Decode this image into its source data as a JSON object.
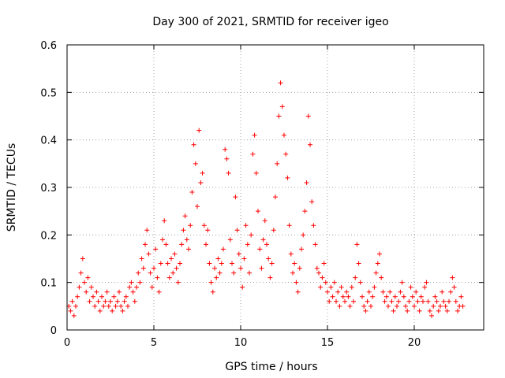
{
  "chart_data": {
    "type": "scatter",
    "title": "Day 300 of 2021, SRMTID for receiver igeo",
    "xlabel": "GPS time / hours",
    "ylabel": "SRMTID / TECUs",
    "xlim": [
      0,
      24
    ],
    "ylim": [
      0,
      0.6
    ],
    "xticks": [
      0,
      5,
      10,
      15,
      20
    ],
    "yticks": [
      0,
      0.1,
      0.2,
      0.3,
      0.4,
      0.5,
      0.6
    ],
    "xtick_labels": [
      "0",
      "5",
      "10",
      "15",
      "20"
    ],
    "ytick_labels": [
      "0",
      "0.1",
      "0.2",
      "0.3",
      "0.4",
      "0.5",
      "0.6"
    ],
    "grid": true,
    "marker": "plus",
    "color": "#ff0000",
    "series": [
      {
        "name": "SRMTID",
        "points": [
          [
            0.1,
            0.05
          ],
          [
            0.2,
            0.04
          ],
          [
            0.3,
            0.06
          ],
          [
            0.4,
            0.03
          ],
          [
            0.5,
            0.05
          ],
          [
            0.6,
            0.07
          ],
          [
            0.7,
            0.09
          ],
          [
            0.8,
            0.12
          ],
          [
            0.9,
            0.15
          ],
          [
            1.0,
            0.1
          ],
          [
            1.1,
            0.08
          ],
          [
            1.2,
            0.11
          ],
          [
            1.3,
            0.06
          ],
          [
            1.4,
            0.09
          ],
          [
            1.5,
            0.07
          ],
          [
            1.6,
            0.05
          ],
          [
            1.7,
            0.08
          ],
          [
            1.8,
            0.06
          ],
          [
            1.9,
            0.04
          ],
          [
            2.0,
            0.07
          ],
          [
            2.1,
            0.05
          ],
          [
            2.2,
            0.06
          ],
          [
            2.3,
            0.08
          ],
          [
            2.4,
            0.05
          ],
          [
            2.5,
            0.06
          ],
          [
            2.6,
            0.04
          ],
          [
            2.7,
            0.07
          ],
          [
            2.8,
            0.05
          ],
          [
            2.9,
            0.06
          ],
          [
            3.0,
            0.08
          ],
          [
            3.1,
            0.05
          ],
          [
            3.2,
            0.04
          ],
          [
            3.3,
            0.06
          ],
          [
            3.4,
            0.07
          ],
          [
            3.5,
            0.05
          ],
          [
            3.6,
            0.09
          ],
          [
            3.7,
            0.1
          ],
          [
            3.8,
            0.08
          ],
          [
            3.9,
            0.06
          ],
          [
            4.0,
            0.09
          ],
          [
            4.1,
            0.12
          ],
          [
            4.2,
            0.1
          ],
          [
            4.3,
            0.15
          ],
          [
            4.4,
            0.13
          ],
          [
            4.5,
            0.18
          ],
          [
            4.6,
            0.21
          ],
          [
            4.7,
            0.16
          ],
          [
            4.8,
            0.12
          ],
          [
            4.9,
            0.09
          ],
          [
            5.0,
            0.13
          ],
          [
            5.1,
            0.17
          ],
          [
            5.2,
            0.11
          ],
          [
            5.3,
            0.08
          ],
          [
            5.4,
            0.14
          ],
          [
            5.5,
            0.19
          ],
          [
            5.6,
            0.23
          ],
          [
            5.7,
            0.18
          ],
          [
            5.8,
            0.14
          ],
          [
            5.9,
            0.11
          ],
          [
            6.0,
            0.15
          ],
          [
            6.1,
            0.12
          ],
          [
            6.2,
            0.16
          ],
          [
            6.3,
            0.13
          ],
          [
            6.4,
            0.1
          ],
          [
            6.5,
            0.14
          ],
          [
            6.6,
            0.18
          ],
          [
            6.7,
            0.21
          ],
          [
            6.8,
            0.24
          ],
          [
            6.9,
            0.19
          ],
          [
            7.0,
            0.17
          ],
          [
            7.1,
            0.22
          ],
          [
            7.2,
            0.29
          ],
          [
            7.3,
            0.39
          ],
          [
            7.4,
            0.35
          ],
          [
            7.5,
            0.26
          ],
          [
            7.6,
            0.42
          ],
          [
            7.7,
            0.31
          ],
          [
            7.8,
            0.33
          ],
          [
            7.9,
            0.22
          ],
          [
            8.0,
            0.18
          ],
          [
            8.1,
            0.21
          ],
          [
            8.2,
            0.14
          ],
          [
            8.3,
            0.1
          ],
          [
            8.4,
            0.08
          ],
          [
            8.5,
            0.13
          ],
          [
            8.6,
            0.11
          ],
          [
            8.7,
            0.15
          ],
          [
            8.8,
            0.12
          ],
          [
            8.9,
            0.14
          ],
          [
            9.0,
            0.17
          ],
          [
            9.1,
            0.38
          ],
          [
            9.2,
            0.36
          ],
          [
            9.3,
            0.33
          ],
          [
            9.4,
            0.19
          ],
          [
            9.5,
            0.14
          ],
          [
            9.6,
            0.12
          ],
          [
            9.7,
            0.28
          ],
          [
            9.8,
            0.21
          ],
          [
            9.9,
            0.16
          ],
          [
            10.0,
            0.13
          ],
          [
            10.1,
            0.09
          ],
          [
            10.2,
            0.15
          ],
          [
            10.3,
            0.22
          ],
          [
            10.4,
            0.18
          ],
          [
            10.5,
            0.12
          ],
          [
            10.6,
            0.2
          ],
          [
            10.7,
            0.37
          ],
          [
            10.8,
            0.41
          ],
          [
            10.9,
            0.33
          ],
          [
            11.0,
            0.25
          ],
          [
            11.1,
            0.17
          ],
          [
            11.2,
            0.13
          ],
          [
            11.3,
            0.19
          ],
          [
            11.4,
            0.23
          ],
          [
            11.5,
            0.18
          ],
          [
            11.6,
            0.15
          ],
          [
            11.7,
            0.11
          ],
          [
            11.8,
            0.14
          ],
          [
            11.9,
            0.21
          ],
          [
            12.0,
            0.28
          ],
          [
            12.1,
            0.35
          ],
          [
            12.2,
            0.45
          ],
          [
            12.3,
            0.52
          ],
          [
            12.4,
            0.47
          ],
          [
            12.5,
            0.41
          ],
          [
            12.6,
            0.37
          ],
          [
            12.7,
            0.32
          ],
          [
            12.8,
            0.22
          ],
          [
            12.9,
            0.16
          ],
          [
            13.0,
            0.12
          ],
          [
            13.1,
            0.14
          ],
          [
            13.2,
            0.1
          ],
          [
            13.3,
            0.08
          ],
          [
            13.4,
            0.13
          ],
          [
            13.5,
            0.17
          ],
          [
            13.6,
            0.2
          ],
          [
            13.7,
            0.25
          ],
          [
            13.8,
            0.31
          ],
          [
            13.9,
            0.45
          ],
          [
            14.0,
            0.39
          ],
          [
            14.1,
            0.27
          ],
          [
            14.2,
            0.22
          ],
          [
            14.3,
            0.18
          ],
          [
            14.4,
            0.13
          ],
          [
            14.5,
            0.12
          ],
          [
            14.6,
            0.09
          ],
          [
            14.7,
            0.11
          ],
          [
            14.8,
            0.14
          ],
          [
            14.9,
            0.1
          ],
          [
            15.0,
            0.08
          ],
          [
            15.1,
            0.06
          ],
          [
            15.2,
            0.09
          ],
          [
            15.3,
            0.07
          ],
          [
            15.4,
            0.1
          ],
          [
            15.5,
            0.06
          ],
          [
            15.6,
            0.08
          ],
          [
            15.7,
            0.05
          ],
          [
            15.8,
            0.09
          ],
          [
            15.9,
            0.07
          ],
          [
            16.0,
            0.06
          ],
          [
            16.1,
            0.08
          ],
          [
            16.2,
            0.07
          ],
          [
            16.3,
            0.05
          ],
          [
            16.4,
            0.09
          ],
          [
            16.5,
            0.06
          ],
          [
            16.6,
            0.11
          ],
          [
            16.7,
            0.18
          ],
          [
            16.8,
            0.14
          ],
          [
            16.9,
            0.1
          ],
          [
            17.0,
            0.07
          ],
          [
            17.1,
            0.05
          ],
          [
            17.2,
            0.04
          ],
          [
            17.3,
            0.06
          ],
          [
            17.4,
            0.08
          ],
          [
            17.5,
            0.05
          ],
          [
            17.6,
            0.07
          ],
          [
            17.7,
            0.09
          ],
          [
            17.8,
            0.12
          ],
          [
            17.9,
            0.14
          ],
          [
            18.0,
            0.16
          ],
          [
            18.1,
            0.11
          ],
          [
            18.2,
            0.08
          ],
          [
            18.3,
            0.06
          ],
          [
            18.4,
            0.07
          ],
          [
            18.5,
            0.05
          ],
          [
            18.6,
            0.08
          ],
          [
            18.7,
            0.06
          ],
          [
            18.8,
            0.04
          ],
          [
            18.9,
            0.07
          ],
          [
            19.0,
            0.05
          ],
          [
            19.1,
            0.06
          ],
          [
            19.2,
            0.08
          ],
          [
            19.3,
            0.1
          ],
          [
            19.4,
            0.07
          ],
          [
            19.5,
            0.05
          ],
          [
            19.6,
            0.04
          ],
          [
            19.7,
            0.06
          ],
          [
            19.8,
            0.09
          ],
          [
            19.9,
            0.07
          ],
          [
            20.0,
            0.05
          ],
          [
            20.1,
            0.08
          ],
          [
            20.2,
            0.06
          ],
          [
            20.3,
            0.04
          ],
          [
            20.4,
            0.07
          ],
          [
            20.5,
            0.06
          ],
          [
            20.6,
            0.09
          ],
          [
            20.7,
            0.1
          ],
          [
            20.8,
            0.06
          ],
          [
            20.9,
            0.04
          ],
          [
            21.0,
            0.03
          ],
          [
            21.1,
            0.05
          ],
          [
            21.2,
            0.07
          ],
          [
            21.3,
            0.06
          ],
          [
            21.4,
            0.04
          ],
          [
            21.5,
            0.05
          ],
          [
            21.6,
            0.08
          ],
          [
            21.7,
            0.06
          ],
          [
            21.8,
            0.05
          ],
          [
            21.9,
            0.04
          ],
          [
            22.0,
            0.06
          ],
          [
            22.1,
            0.08
          ],
          [
            22.2,
            0.11
          ],
          [
            22.3,
            0.09
          ],
          [
            22.4,
            0.06
          ],
          [
            22.5,
            0.04
          ],
          [
            22.6,
            0.05
          ],
          [
            22.7,
            0.07
          ],
          [
            22.8,
            0.05
          ]
        ]
      }
    ]
  }
}
